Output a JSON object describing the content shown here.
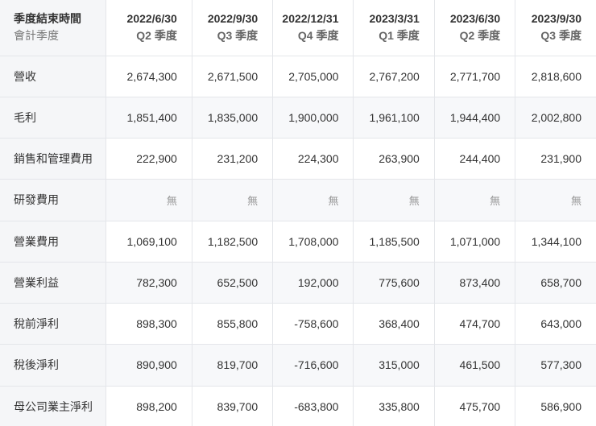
{
  "header": {
    "title": "季度結束時間",
    "subtitle": "會計季度",
    "columns": [
      {
        "date": "2022/6/30",
        "quarter": "Q2 季度"
      },
      {
        "date": "2022/9/30",
        "quarter": "Q3 季度"
      },
      {
        "date": "2022/12/31",
        "quarter": "Q4 季度"
      },
      {
        "date": "2023/3/31",
        "quarter": "Q1 季度"
      },
      {
        "date": "2023/6/30",
        "quarter": "Q2 季度"
      },
      {
        "date": "2023/9/30",
        "quarter": "Q3 季度"
      }
    ]
  },
  "rows": [
    {
      "label": "營收",
      "values": [
        "2,674,300",
        "2,671,500",
        "2,705,000",
        "2,767,200",
        "2,771,700",
        "2,818,600"
      ]
    },
    {
      "label": "毛利",
      "values": [
        "1,851,400",
        "1,835,000",
        "1,900,000",
        "1,961,100",
        "1,944,400",
        "2,002,800"
      ]
    },
    {
      "label": "銷售和管理費用",
      "values": [
        "222,900",
        "231,200",
        "224,300",
        "263,900",
        "244,400",
        "231,900"
      ]
    },
    {
      "label": "研發費用",
      "values": [
        "無",
        "無",
        "無",
        "無",
        "無",
        "無"
      ]
    },
    {
      "label": "營業費用",
      "values": [
        "1,069,100",
        "1,182,500",
        "1,708,000",
        "1,185,500",
        "1,071,000",
        "1,344,100"
      ]
    },
    {
      "label": "營業利益",
      "values": [
        "782,300",
        "652,500",
        "192,000",
        "775,600",
        "873,400",
        "658,700"
      ]
    },
    {
      "label": "稅前淨利",
      "values": [
        "898,300",
        "855,800",
        "-758,600",
        "368,400",
        "474,700",
        "643,000"
      ]
    },
    {
      "label": "稅後淨利",
      "values": [
        "890,900",
        "819,700",
        "-716,600",
        "315,000",
        "461,500",
        "577,300"
      ]
    },
    {
      "label": "母公司業主淨利",
      "values": [
        "898,200",
        "839,700",
        "-683,800",
        "335,800",
        "475,700",
        "586,900"
      ]
    }
  ]
}
